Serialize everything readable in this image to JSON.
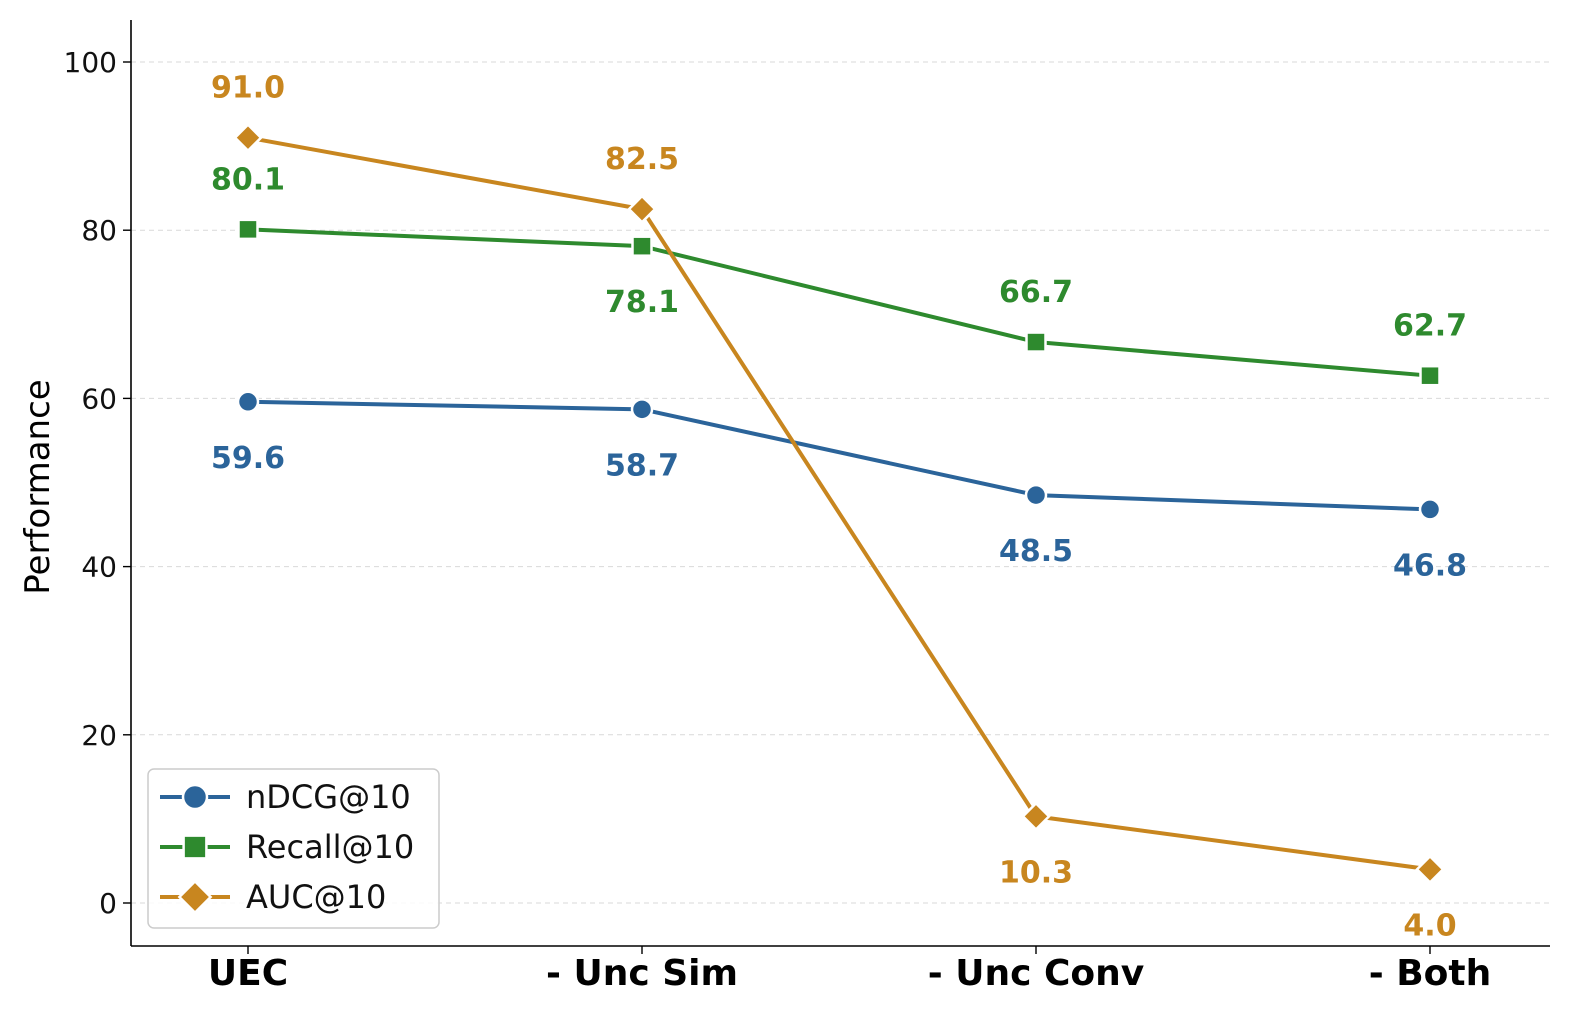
{
  "chart_data": {
    "type": "line",
    "categories": [
      "UEC",
      "- Unc Sim",
      "- Unc Conv",
      "- Both"
    ],
    "ylabel": "Performance",
    "xlabel": "",
    "ylim": [
      -5,
      105
    ],
    "yticks": [
      0,
      20,
      40,
      60,
      80,
      100
    ],
    "grid": "horizontal-dashed",
    "legend_position": "lower-left",
    "series": [
      {
        "name": "nDCG@10",
        "values": [
          59.6,
          58.7,
          48.5,
          46.8
        ],
        "labels": [
          "59.6",
          "58.7",
          "48.5",
          "46.8"
        ],
        "color": "#2b649a",
        "marker": "circle",
        "label_side": "below"
      },
      {
        "name": "Recall@10",
        "values": [
          80.1,
          78.1,
          66.7,
          62.7
        ],
        "labels": [
          "80.1",
          "78.1",
          "66.7",
          "62.7"
        ],
        "color": "#2e8a2e",
        "marker": "square",
        "label_side": [
          "above",
          "below",
          "above",
          "above"
        ]
      },
      {
        "name": "AUC@10",
        "values": [
          91.0,
          82.5,
          10.3,
          4.0
        ],
        "labels": [
          "91.0",
          "82.5",
          "10.3",
          "4.0"
        ],
        "color": "#c8861f",
        "marker": "diamond",
        "label_side": [
          "above",
          "above",
          "below",
          "below"
        ]
      }
    ]
  }
}
